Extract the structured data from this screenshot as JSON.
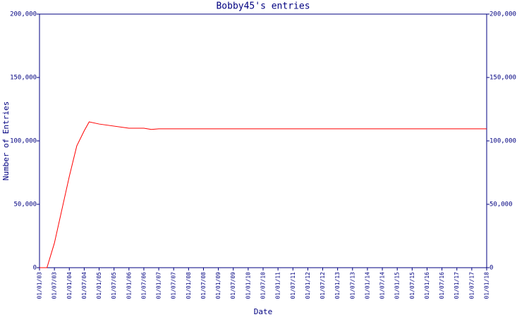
{
  "chart_data": {
    "type": "line",
    "title": "Bobby45's entries",
    "y_label": "Number of Entries",
    "x_label": "Date",
    "color": "#ff0000",
    "axis_color": "#000080",
    "x": [
      "01/01/03",
      "01/04/03",
      "01/07/03",
      "01/01/04",
      "01/04/04",
      "01/07/04",
      "01/09/04",
      "01/01/05",
      "01/01/06",
      "01/07/06",
      "01/10/06",
      "01/01/07",
      "01/01/18"
    ],
    "values": [
      0,
      0,
      19400,
      72000,
      96000,
      108000,
      115000,
      113300,
      110000,
      110000,
      109000,
      109500,
      109500
    ],
    "xlim": [
      "01/01/03",
      "01/01/18"
    ],
    "xticks": [
      "01/01/03",
      "01/07/03",
      "01/01/04",
      "01/07/04",
      "01/01/05",
      "01/07/05",
      "01/01/06",
      "01/07/06",
      "01/01/07",
      "01/07/07",
      "01/01/08",
      "01/07/08",
      "01/01/09",
      "01/07/09",
      "01/01/10",
      "01/07/10",
      "01/01/11",
      "01/07/11",
      "01/01/12",
      "01/07/12",
      "01/01/13",
      "01/07/13",
      "01/01/14",
      "01/07/14",
      "01/01/15",
      "01/07/15",
      "01/01/16",
      "01/07/16",
      "01/01/17",
      "01/07/17",
      "01/01/18"
    ],
    "ylim": [
      0,
      200000
    ],
    "yticks": [
      0,
      {
        "value": 50000,
        "label": "50,000"
      },
      {
        "value": 100000,
        "label": "100,000"
      },
      {
        "value": 150000,
        "label": "150,000"
      },
      {
        "value": 200000,
        "label": "200,000"
      }
    ],
    "y2lim": [
      0,
      200000
    ],
    "y2ticks": [
      0,
      {
        "value": 50000,
        "label": "50,000"
      },
      {
        "value": 100000,
        "label": "100,000"
      },
      {
        "value": 150000,
        "label": "150,000"
      },
      {
        "value": 200000,
        "label": "200,000"
      }
    ],
    "grid": false
  }
}
